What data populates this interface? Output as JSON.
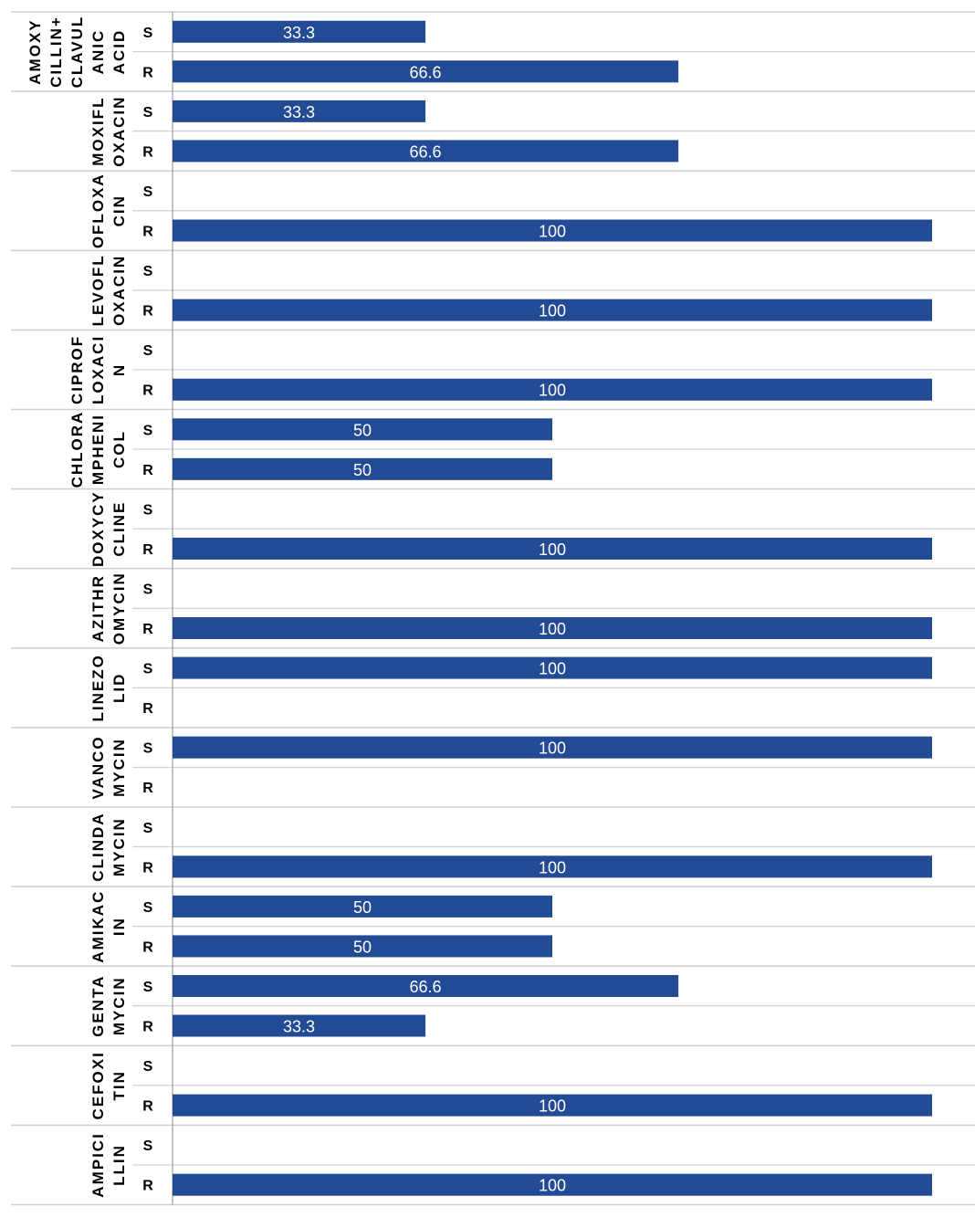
{
  "chart_data": {
    "type": "bar",
    "orientation": "horizontal",
    "grouped_categories": true,
    "bar_color": "#234A94",
    "data_label_color": "#ffffff",
    "grid_color": "#d0d0d0",
    "axis_color": "#a0a0a0",
    "text_color": "#000000",
    "xlim": [
      0,
      100
    ],
    "title": "",
    "xlabel": "",
    "ylabel": "",
    "groups": [
      {
        "label": "AMOXY CILLIN+ CLAVUL ANIC ACID",
        "label_lines": [
          "AMOXY",
          "CILLIN+",
          "CLAVUL",
          "ANIC",
          "ACID"
        ],
        "items": [
          {
            "label": "S",
            "value": 33.3,
            "value_label": "33.3"
          },
          {
            "label": "R",
            "value": 66.6,
            "value_label": "66.6"
          }
        ]
      },
      {
        "label": "MOXIFL OXACIN",
        "label_lines": [
          "MOXIFL",
          "OXACIN"
        ],
        "items": [
          {
            "label": "S",
            "value": 33.3,
            "value_label": "33.3"
          },
          {
            "label": "R",
            "value": 66.6,
            "value_label": "66.6"
          }
        ]
      },
      {
        "label": "OFLOXA CIN",
        "label_lines": [
          "OFLOXA",
          "CIN"
        ],
        "items": [
          {
            "label": "S",
            "value": null,
            "value_label": ""
          },
          {
            "label": "R",
            "value": 100,
            "value_label": "100"
          }
        ]
      },
      {
        "label": "LEVOFL OXACIN",
        "label_lines": [
          "LEVOFL",
          "OXACIN"
        ],
        "items": [
          {
            "label": "S",
            "value": null,
            "value_label": ""
          },
          {
            "label": "R",
            "value": 100,
            "value_label": "100"
          }
        ]
      },
      {
        "label": "CIPROF LOXACI N",
        "label_lines": [
          "CIPROF",
          "LOXACI",
          "N"
        ],
        "items": [
          {
            "label": "S",
            "value": null,
            "value_label": ""
          },
          {
            "label": "R",
            "value": 100,
            "value_label": "100"
          }
        ]
      },
      {
        "label": "CHLORA MPHENI COL",
        "label_lines": [
          "CHLORA",
          "MPHENI",
          "COL"
        ],
        "items": [
          {
            "label": "S",
            "value": 50,
            "value_label": "50"
          },
          {
            "label": "R",
            "value": 50,
            "value_label": "50"
          }
        ]
      },
      {
        "label": "DOXYCY CLINE",
        "label_lines": [
          "DOXYCY",
          "CLINE"
        ],
        "items": [
          {
            "label": "S",
            "value": null,
            "value_label": ""
          },
          {
            "label": "R",
            "value": 100,
            "value_label": "100"
          }
        ]
      },
      {
        "label": "AZITHR OMYCIN",
        "label_lines": [
          "AZITHR",
          "OMYCIN"
        ],
        "items": [
          {
            "label": "S",
            "value": null,
            "value_label": ""
          },
          {
            "label": "R",
            "value": 100,
            "value_label": "100"
          }
        ]
      },
      {
        "label": "LINEZO LID",
        "label_lines": [
          "LINEZO",
          "LID"
        ],
        "items": [
          {
            "label": "S",
            "value": 100,
            "value_label": "100"
          },
          {
            "label": "R",
            "value": null,
            "value_label": ""
          }
        ]
      },
      {
        "label": "VANCO MYCIN",
        "label_lines": [
          "VANCO",
          "MYCIN"
        ],
        "items": [
          {
            "label": "S",
            "value": 100,
            "value_label": "100"
          },
          {
            "label": "R",
            "value": null,
            "value_label": ""
          }
        ]
      },
      {
        "label": "CLINDA MYCIN",
        "label_lines": [
          "CLINDA",
          "MYCIN"
        ],
        "items": [
          {
            "label": "S",
            "value": null,
            "value_label": ""
          },
          {
            "label": "R",
            "value": 100,
            "value_label": "100"
          }
        ]
      },
      {
        "label": "AMIKAC IN",
        "label_lines": [
          "AMIKAC",
          "IN"
        ],
        "items": [
          {
            "label": "S",
            "value": 50,
            "value_label": "50"
          },
          {
            "label": "R",
            "value": 50,
            "value_label": "50"
          }
        ]
      },
      {
        "label": "GENTA MYCIN",
        "label_lines": [
          "GENTA",
          "MYCIN"
        ],
        "items": [
          {
            "label": "S",
            "value": 66.6,
            "value_label": "66.6"
          },
          {
            "label": "R",
            "value": 33.3,
            "value_label": "33.3"
          }
        ]
      },
      {
        "label": "CEFOXI TIN",
        "label_lines": [
          "CEFOXI",
          "TIN"
        ],
        "items": [
          {
            "label": "S",
            "value": null,
            "value_label": ""
          },
          {
            "label": "R",
            "value": 100,
            "value_label": "100"
          }
        ]
      },
      {
        "label": "AMPICI LLIN",
        "label_lines": [
          "AMPICI",
          "LLIN"
        ],
        "items": [
          {
            "label": "S",
            "value": null,
            "value_label": ""
          },
          {
            "label": "R",
            "value": 100,
            "value_label": "100"
          }
        ]
      }
    ]
  }
}
